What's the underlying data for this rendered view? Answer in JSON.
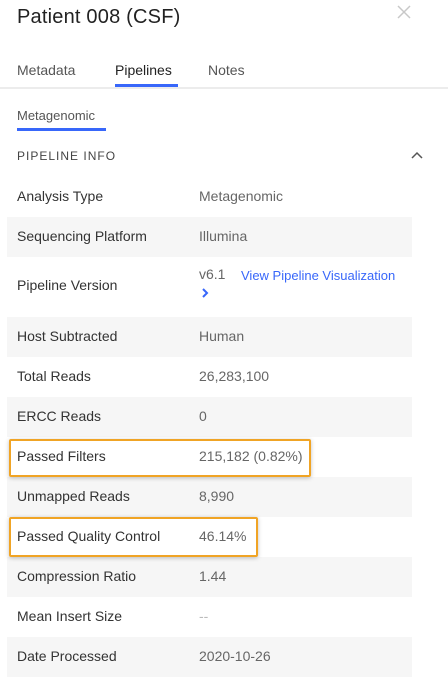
{
  "header": {
    "title": "Patient 008 (CSF)"
  },
  "tabs": [
    {
      "label": "Metadata",
      "active": false
    },
    {
      "label": "Pipelines",
      "active": true
    },
    {
      "label": "Notes",
      "active": false
    }
  ],
  "subtab": {
    "label": "Metagenomic"
  },
  "section": {
    "title": "PIPELINE INFO"
  },
  "pipeline_info": {
    "analysis_type": {
      "label": "Analysis Type",
      "value": "Metagenomic"
    },
    "sequencing_platform": {
      "label": "Sequencing Platform",
      "value": "Illumina"
    },
    "pipeline_version": {
      "label": "Pipeline Version",
      "value": "v6.1",
      "link": "View Pipeline Visualization"
    },
    "host_subtracted": {
      "label": "Host Subtracted",
      "value": "Human"
    },
    "total_reads": {
      "label": "Total Reads",
      "value": "26,283,100"
    },
    "ercc_reads": {
      "label": "ERCC Reads",
      "value": "0"
    },
    "passed_filters": {
      "label": "Passed Filters",
      "value": "215,182 (0.82%)"
    },
    "unmapped_reads": {
      "label": "Unmapped Reads",
      "value": "8,990"
    },
    "passed_quality_control": {
      "label": "Passed Quality Control",
      "value": "46.14%"
    },
    "compression_ratio": {
      "label": "Compression Ratio",
      "value": "1.44"
    },
    "mean_insert_size": {
      "label": "Mean Insert Size",
      "value": "--"
    },
    "date_processed": {
      "label": "Date Processed",
      "value": "2020-10-26"
    }
  },
  "colors": {
    "accent": "#3867fa",
    "highlight": "#f0a425",
    "row_shade": "#f6f6f6"
  }
}
